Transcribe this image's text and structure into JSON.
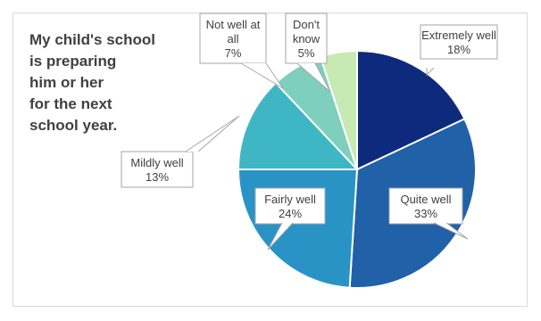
{
  "chart_data": {
    "type": "pie",
    "title_lines": [
      "My child's school",
      "is preparing",
      "him or her",
      "for the next",
      "school year."
    ],
    "slices": [
      {
        "label_lines": [
          "Extremely well"
        ],
        "value": 18,
        "pct": "18%",
        "color": "#0e2a7d"
      },
      {
        "label_lines": [
          "Quite well"
        ],
        "value": 33,
        "pct": "33%",
        "color": "#2061a8"
      },
      {
        "label_lines": [
          "Fairly well"
        ],
        "value": 24,
        "pct": "24%",
        "color": "#2a93c6"
      },
      {
        "label_lines": [
          "Mildly well"
        ],
        "value": 13,
        "pct": "13%",
        "color": "#3fb6c4"
      },
      {
        "label_lines": [
          "Not well at",
          "all"
        ],
        "value": 7,
        "pct": "7%",
        "color": "#7ecfbd"
      },
      {
        "label_lines": [
          "Don't",
          "know"
        ],
        "value": 5,
        "pct": "5%",
        "color": "#c7e9b4"
      }
    ]
  }
}
